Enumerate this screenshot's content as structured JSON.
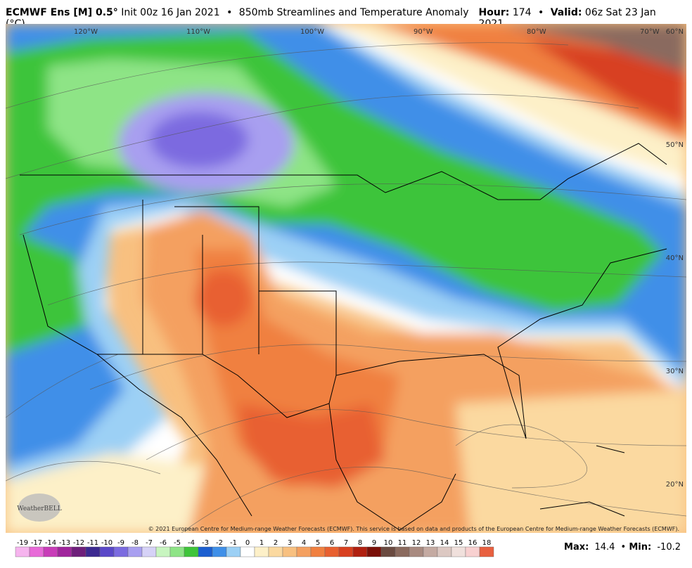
{
  "header": {
    "model": "ECMWF Ens [M] 0.5°",
    "init": "Init 00z 16 Jan 2021",
    "separator": "•",
    "product": "850mb Streamlines and Temperature Anomaly (°C)",
    "hour_label": "Hour:",
    "hour": "174",
    "valid_label": "Valid:",
    "valid": "06z Sat 23 Jan 2021"
  },
  "map": {
    "longitude_labels": [
      "120°W",
      "110°W",
      "100°W",
      "90°W",
      "80°W",
      "70°W"
    ],
    "latitude_labels": [
      "60°N",
      "50°N",
      "40°N",
      "30°N",
      "20°N"
    ],
    "credit": "© 2021 European Centre for Medium-range Weather Forecasts (ECMWF). This service is based on data and products of the European Centre for Medium-range Weather Forecasts (ECMWF).",
    "logo": "WeatherBELL"
  },
  "colorbar": {
    "values": [
      -19,
      -17,
      -14,
      -13,
      -12,
      -11,
      -10,
      -9,
      -8,
      -7,
      -6,
      -5,
      -4,
      -3,
      -2,
      -1,
      0,
      1,
      2,
      3,
      4,
      5,
      6,
      7,
      8,
      9,
      10,
      11,
      12,
      13,
      14,
      15,
      16,
      18
    ],
    "colors": [
      "#f6b4ee",
      "#e86ad8",
      "#c83cb8",
      "#a0259c",
      "#6e1f7a",
      "#3c2a90",
      "#5a48c8",
      "#7b6be0",
      "#a89ff0",
      "#d6d2f7",
      "#c8f5c0",
      "#8ee486",
      "#3ec43a",
      "#1c5fd0",
      "#3f8fe8",
      "#9cd0f5",
      "#ffffff",
      "#fdf0c8",
      "#fbd9a0",
      "#f8c080",
      "#f4a060",
      "#f08040",
      "#e86030",
      "#d84020",
      "#b02010",
      "#7a1008",
      "#6a4a40",
      "#8a6a5e",
      "#a88a80",
      "#c4aaa2",
      "#dcc8c2",
      "#f0e0dc",
      "#f8d0d0",
      "#e86040"
    ]
  },
  "stats": {
    "max_label": "Max:",
    "max": 14.4,
    "separator": "•",
    "min_label": "Min:",
    "min": -10.2
  }
}
